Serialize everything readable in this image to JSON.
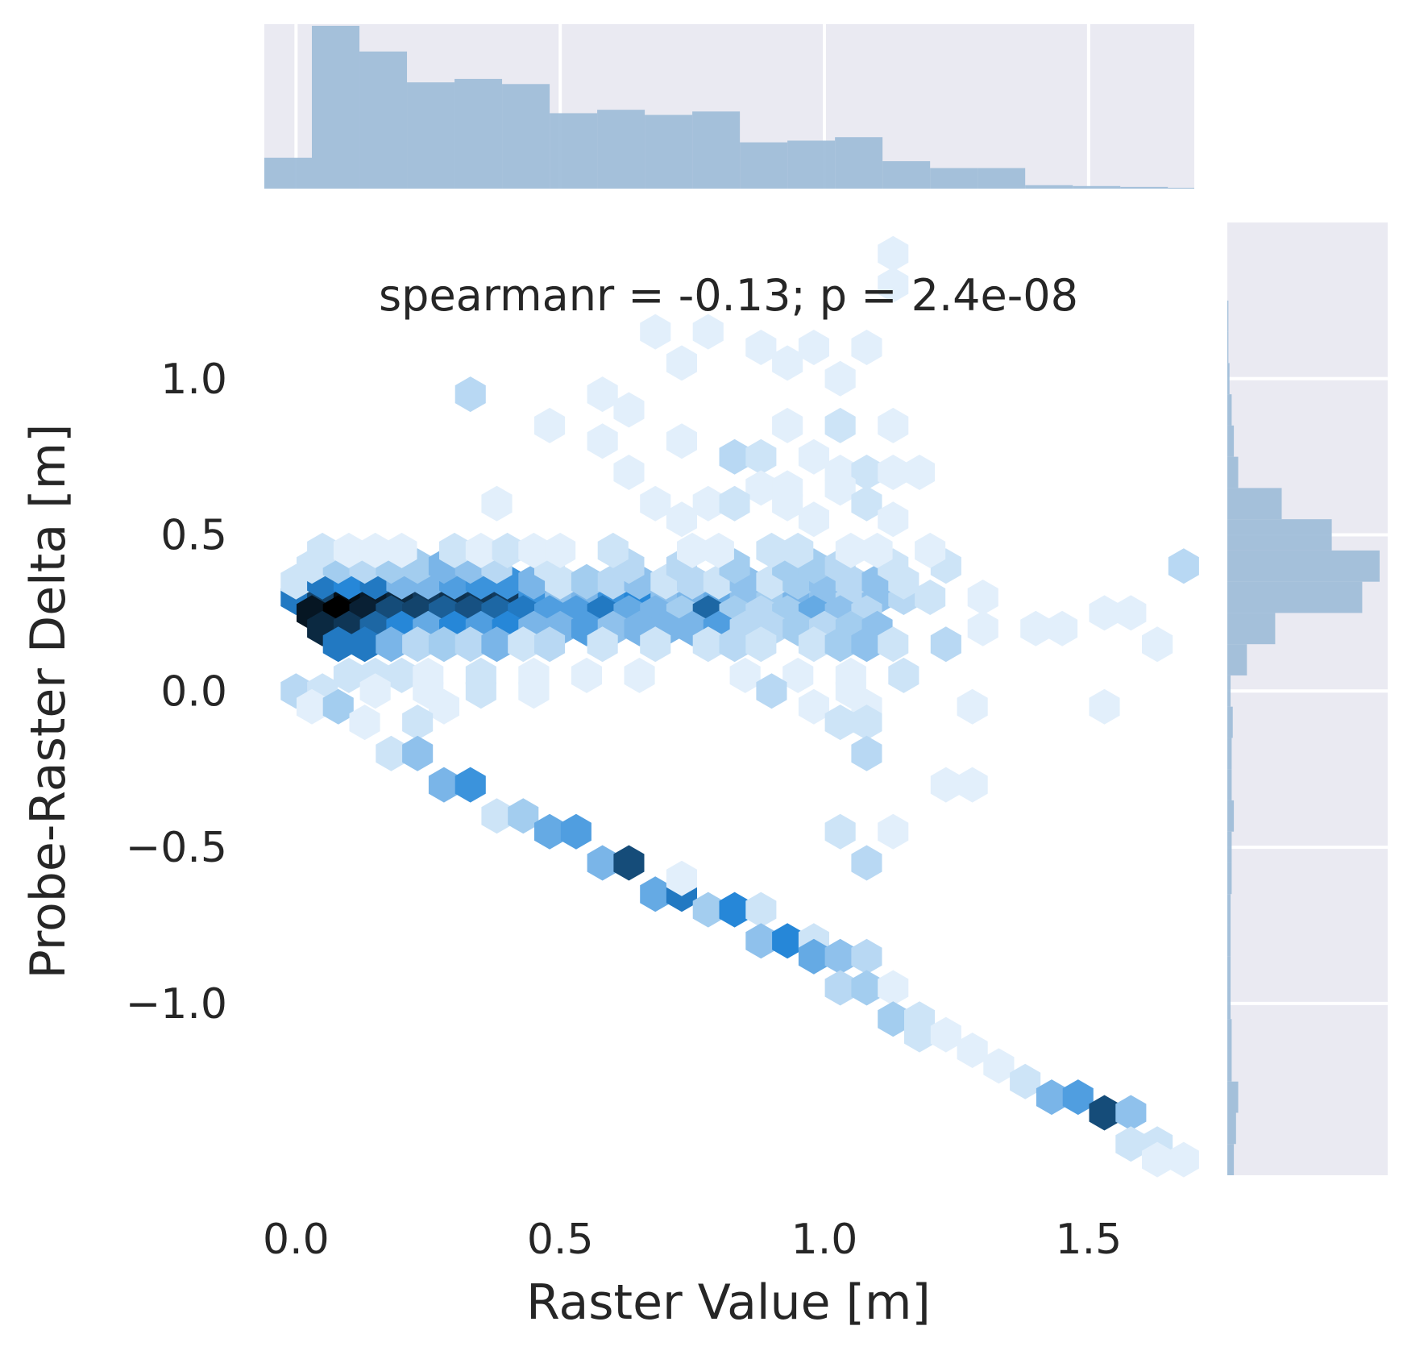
{
  "chart_data": {
    "type": "hexbin",
    "annotation": "spearmanr = -0.13; p = 2.4e-08",
    "xlabel": "Raster Value [m]",
    "ylabel": "Probe-Raster Delta [m]",
    "xlim": [
      -0.06,
      1.7
    ],
    "ylim": [
      -1.55,
      1.5
    ],
    "xticks": [
      0.0,
      0.5,
      1.0,
      1.5
    ],
    "xtick_labels": [
      "0.0",
      "0.5",
      "1.0",
      "1.5"
    ],
    "yticks": [
      -1.0,
      -0.5,
      0.0,
      0.5,
      1.0
    ],
    "ytick_labels": [
      "−1.0",
      "−0.5",
      "0.0",
      "0.5",
      "1.0"
    ],
    "colormap": [
      "#f7fbff",
      "#2687d8",
      "#000000"
    ],
    "marginal_color": "#9dbcd8",
    "marginal_background": "#eaeaf2",
    "hexbins": [
      [
        0.0,
        0.3,
        0.55
      ],
      [
        0.05,
        0.3,
        0.75
      ],
      [
        0.1,
        0.3,
        0.95
      ],
      [
        0.15,
        0.3,
        0.9
      ],
      [
        0.2,
        0.3,
        0.85
      ],
      [
        0.25,
        0.3,
        0.78
      ],
      [
        0.3,
        0.3,
        0.82
      ],
      [
        0.35,
        0.3,
        0.8
      ],
      [
        0.4,
        0.3,
        0.78
      ],
      [
        0.45,
        0.3,
        0.45
      ],
      [
        0.5,
        0.3,
        0.25
      ],
      [
        0.55,
        0.3,
        0.3
      ],
      [
        0.6,
        0.3,
        0.45
      ],
      [
        0.65,
        0.3,
        0.5
      ],
      [
        0.7,
        0.3,
        0.25
      ],
      [
        0.75,
        0.3,
        0.3
      ],
      [
        0.8,
        0.3,
        0.35
      ],
      [
        0.85,
        0.3,
        0.25
      ],
      [
        0.9,
        0.3,
        0.2
      ],
      [
        0.95,
        0.3,
        0.3
      ],
      [
        1.0,
        0.3,
        0.25
      ],
      [
        1.05,
        0.3,
        0.15
      ],
      [
        1.1,
        0.3,
        0.25
      ],
      [
        1.15,
        0.3,
        0.15
      ],
      [
        1.2,
        0.3,
        0.1
      ],
      [
        1.3,
        0.3,
        0.05
      ],
      [
        0.03,
        0.25,
        0.92
      ],
      [
        0.08,
        0.25,
        1.0
      ],
      [
        0.13,
        0.25,
        0.88
      ],
      [
        0.18,
        0.25,
        0.72
      ],
      [
        0.23,
        0.25,
        0.75
      ],
      [
        0.28,
        0.25,
        0.65
      ],
      [
        0.33,
        0.25,
        0.7
      ],
      [
        0.38,
        0.25,
        0.62
      ],
      [
        0.43,
        0.25,
        0.55
      ],
      [
        0.48,
        0.25,
        0.4
      ],
      [
        0.53,
        0.25,
        0.4
      ],
      [
        0.58,
        0.25,
        0.55
      ],
      [
        0.63,
        0.25,
        0.35
      ],
      [
        0.68,
        0.25,
        0.3
      ],
      [
        0.73,
        0.25,
        0.2
      ],
      [
        0.78,
        0.25,
        0.62
      ],
      [
        0.83,
        0.25,
        0.2
      ],
      [
        0.88,
        0.25,
        0.15
      ],
      [
        0.93,
        0.25,
        0.2
      ],
      [
        0.98,
        0.25,
        0.35
      ],
      [
        1.03,
        0.25,
        0.25
      ],
      [
        1.08,
        0.25,
        0.15
      ],
      [
        1.53,
        0.25,
        0.05
      ],
      [
        1.58,
        0.25,
        0.05
      ],
      [
        0.05,
        0.2,
        0.85
      ],
      [
        0.1,
        0.2,
        0.8
      ],
      [
        0.15,
        0.2,
        0.62
      ],
      [
        0.2,
        0.2,
        0.5
      ],
      [
        0.25,
        0.2,
        0.35
      ],
      [
        0.3,
        0.2,
        0.5
      ],
      [
        0.35,
        0.2,
        0.4
      ],
      [
        0.4,
        0.2,
        0.5
      ],
      [
        0.45,
        0.2,
        0.3
      ],
      [
        0.5,
        0.2,
        0.3
      ],
      [
        0.55,
        0.2,
        0.4
      ],
      [
        0.6,
        0.2,
        0.25
      ],
      [
        0.65,
        0.2,
        0.3
      ],
      [
        0.7,
        0.2,
        0.3
      ],
      [
        0.75,
        0.2,
        0.3
      ],
      [
        0.8,
        0.2,
        0.4
      ],
      [
        0.85,
        0.2,
        0.15
      ],
      [
        0.9,
        0.2,
        0.15
      ],
      [
        0.95,
        0.2,
        0.2
      ],
      [
        1.0,
        0.2,
        0.15
      ],
      [
        1.05,
        0.2,
        0.2
      ],
      [
        1.1,
        0.2,
        0.25
      ],
      [
        1.3,
        0.2,
        0.05
      ],
      [
        1.4,
        0.2,
        0.05
      ],
      [
        1.45,
        0.2,
        0.05
      ],
      [
        0.0,
        0.35,
        0.1
      ],
      [
        0.05,
        0.35,
        0.55
      ],
      [
        0.1,
        0.35,
        0.5
      ],
      [
        0.15,
        0.35,
        0.55
      ],
      [
        0.2,
        0.35,
        0.3
      ],
      [
        0.25,
        0.35,
        0.3
      ],
      [
        0.3,
        0.35,
        0.4
      ],
      [
        0.35,
        0.35,
        0.45
      ],
      [
        0.4,
        0.35,
        0.45
      ],
      [
        0.45,
        0.35,
        0.3
      ],
      [
        0.5,
        0.35,
        0.1
      ],
      [
        0.55,
        0.35,
        0.2
      ],
      [
        0.6,
        0.35,
        0.15
      ],
      [
        0.65,
        0.35,
        0.25
      ],
      [
        0.7,
        0.35,
        0.1
      ],
      [
        0.75,
        0.35,
        0.15
      ],
      [
        0.8,
        0.35,
        0.1
      ],
      [
        0.85,
        0.35,
        0.25
      ],
      [
        0.9,
        0.35,
        0.1
      ],
      [
        0.95,
        0.35,
        0.2
      ],
      [
        1.0,
        0.35,
        0.25
      ],
      [
        1.05,
        0.35,
        0.15
      ],
      [
        1.1,
        0.35,
        0.25
      ],
      [
        1.15,
        0.35,
        0.1
      ],
      [
        0.08,
        0.15,
        0.55
      ],
      [
        0.13,
        0.15,
        0.55
      ],
      [
        0.18,
        0.15,
        0.3
      ],
      [
        0.23,
        0.15,
        0.15
      ],
      [
        0.28,
        0.15,
        0.2
      ],
      [
        0.33,
        0.15,
        0.15
      ],
      [
        0.38,
        0.15,
        0.3
      ],
      [
        0.43,
        0.15,
        0.1
      ],
      [
        0.48,
        0.15,
        0.15
      ],
      [
        0.58,
        0.15,
        0.1
      ],
      [
        0.68,
        0.15,
        0.1
      ],
      [
        0.78,
        0.15,
        0.1
      ],
      [
        0.83,
        0.15,
        0.15
      ],
      [
        0.88,
        0.15,
        0.1
      ],
      [
        0.98,
        0.15,
        0.1
      ],
      [
        1.03,
        0.15,
        0.2
      ],
      [
        1.08,
        0.15,
        0.25
      ],
      [
        1.13,
        0.15,
        0.1
      ],
      [
        1.23,
        0.15,
        0.15
      ],
      [
        1.63,
        0.15,
        0.05
      ],
      [
        0.03,
        0.4,
        0.1
      ],
      [
        0.08,
        0.4,
        0.2
      ],
      [
        0.13,
        0.4,
        0.15
      ],
      [
        0.18,
        0.4,
        0.2
      ],
      [
        0.23,
        0.4,
        0.2
      ],
      [
        0.28,
        0.4,
        0.3
      ],
      [
        0.33,
        0.4,
        0.25
      ],
      [
        0.38,
        0.4,
        0.15
      ],
      [
        0.48,
        0.4,
        0.1
      ],
      [
        0.63,
        0.4,
        0.15
      ],
      [
        0.73,
        0.4,
        0.15
      ],
      [
        0.83,
        0.4,
        0.2
      ],
      [
        0.93,
        0.4,
        0.2
      ],
      [
        0.98,
        0.4,
        0.2
      ],
      [
        1.03,
        0.4,
        0.15
      ],
      [
        1.13,
        0.4,
        0.1
      ],
      [
        1.23,
        0.4,
        0.1
      ],
      [
        1.68,
        0.4,
        0.15
      ],
      [
        0.05,
        0.45,
        0.1
      ],
      [
        0.1,
        0.45,
        0.05
      ],
      [
        0.15,
        0.45,
        0.05
      ],
      [
        0.2,
        0.45,
        0.05
      ],
      [
        0.3,
        0.45,
        0.1
      ],
      [
        0.35,
        0.45,
        0.05
      ],
      [
        0.4,
        0.45,
        0.1
      ],
      [
        0.45,
        0.45,
        0.05
      ],
      [
        0.5,
        0.45,
        0.05
      ],
      [
        0.6,
        0.45,
        0.1
      ],
      [
        0.75,
        0.45,
        0.05
      ],
      [
        0.8,
        0.45,
        0.05
      ],
      [
        0.9,
        0.45,
        0.1
      ],
      [
        0.95,
        0.45,
        0.1
      ],
      [
        1.05,
        0.45,
        0.05
      ],
      [
        1.1,
        0.45,
        0.05
      ],
      [
        1.2,
        0.45,
        0.05
      ],
      [
        0.1,
        0.05,
        0.1
      ],
      [
        0.15,
        0.05,
        0.1
      ],
      [
        0.2,
        0.05,
        0.1
      ],
      [
        0.25,
        0.05,
        0.05
      ],
      [
        0.35,
        0.05,
        0.1
      ],
      [
        0.45,
        0.05,
        0.05
      ],
      [
        0.55,
        0.05,
        0.05
      ],
      [
        0.65,
        0.05,
        0.05
      ],
      [
        0.85,
        0.05,
        0.05
      ],
      [
        0.95,
        0.05,
        0.05
      ],
      [
        1.05,
        0.05,
        0.05
      ],
      [
        1.15,
        0.05,
        0.1
      ],
      [
        0.0,
        0.0,
        0.15
      ],
      [
        0.05,
        0.0,
        0.1
      ],
      [
        0.15,
        0.0,
        0.05
      ],
      [
        0.25,
        0.0,
        0.05
      ],
      [
        0.35,
        0.0,
        0.1
      ],
      [
        0.45,
        0.0,
        0.05
      ],
      [
        0.9,
        0.0,
        0.15
      ],
      [
        1.05,
        0.0,
        0.05
      ],
      [
        0.03,
        -0.05,
        0.05
      ],
      [
        0.08,
        -0.05,
        0.2
      ],
      [
        0.28,
        -0.05,
        0.05
      ],
      [
        0.98,
        -0.05,
        0.05
      ],
      [
        1.08,
        -0.05,
        0.05
      ],
      [
        1.28,
        -0.05,
        0.05
      ],
      [
        1.53,
        -0.05,
        0.05
      ],
      [
        0.13,
        -0.1,
        0.05
      ],
      [
        0.23,
        -0.1,
        0.1
      ],
      [
        1.03,
        -0.1,
        0.1
      ],
      [
        1.08,
        -0.1,
        0.1
      ],
      [
        0.18,
        -0.2,
        0.1
      ],
      [
        0.23,
        -0.2,
        0.25
      ],
      [
        1.08,
        -0.2,
        0.15
      ],
      [
        0.28,
        -0.3,
        0.3
      ],
      [
        0.33,
        -0.3,
        0.45
      ],
      [
        1.23,
        -0.3,
        0.05
      ],
      [
        1.28,
        -0.3,
        0.05
      ],
      [
        0.38,
        -0.4,
        0.1
      ],
      [
        0.43,
        -0.4,
        0.2
      ],
      [
        0.48,
        -0.45,
        0.35
      ],
      [
        0.53,
        -0.45,
        0.4
      ],
      [
        1.03,
        -0.45,
        0.1
      ],
      [
        1.13,
        -0.45,
        0.05
      ],
      [
        0.58,
        -0.55,
        0.3
      ],
      [
        0.63,
        -0.55,
        0.72
      ],
      [
        1.08,
        -0.55,
        0.15
      ],
      [
        0.68,
        -0.65,
        0.35
      ],
      [
        0.73,
        -0.65,
        0.55
      ],
      [
        0.73,
        -0.6,
        0.05
      ],
      [
        0.78,
        -0.7,
        0.2
      ],
      [
        0.83,
        -0.7,
        0.5
      ],
      [
        0.88,
        -0.7,
        0.1
      ],
      [
        0.88,
        -0.8,
        0.25
      ],
      [
        0.93,
        -0.8,
        0.5
      ],
      [
        0.98,
        -0.8,
        0.1
      ],
      [
        0.98,
        -0.85,
        0.35
      ],
      [
        1.03,
        -0.85,
        0.25
      ],
      [
        1.08,
        -0.85,
        0.15
      ],
      [
        1.03,
        -0.95,
        0.15
      ],
      [
        1.08,
        -0.95,
        0.2
      ],
      [
        1.13,
        -0.95,
        0.05
      ],
      [
        1.13,
        -1.05,
        0.2
      ],
      [
        1.18,
        -1.05,
        0.1
      ],
      [
        1.18,
        -1.1,
        0.1
      ],
      [
        1.23,
        -1.1,
        0.05
      ],
      [
        1.28,
        -1.15,
        0.05
      ],
      [
        1.33,
        -1.2,
        0.05
      ],
      [
        1.38,
        -1.25,
        0.1
      ],
      [
        1.43,
        -1.3,
        0.3
      ],
      [
        1.48,
        -1.3,
        0.4
      ],
      [
        1.53,
        -1.35,
        0.72
      ],
      [
        1.58,
        -1.35,
        0.25
      ],
      [
        1.58,
        -1.45,
        0.1
      ],
      [
        1.63,
        -1.45,
        0.1
      ],
      [
        1.63,
        -1.5,
        0.05
      ],
      [
        1.68,
        -1.5,
        0.05
      ],
      [
        0.33,
        0.95,
        0.15
      ],
      [
        0.58,
        0.95,
        0.05
      ],
      [
        0.63,
        0.9,
        0.05
      ],
      [
        0.48,
        0.85,
        0.05
      ],
      [
        0.58,
        0.8,
        0.05
      ],
      [
        0.73,
        0.8,
        0.05
      ],
      [
        0.83,
        0.75,
        0.15
      ],
      [
        0.88,
        0.75,
        0.1
      ],
      [
        0.98,
        0.75,
        0.05
      ],
      [
        1.03,
        0.7,
        0.05
      ],
      [
        1.08,
        0.7,
        0.1
      ],
      [
        1.13,
        0.7,
        0.05
      ],
      [
        1.18,
        0.7,
        0.05
      ],
      [
        0.63,
        0.7,
        0.05
      ],
      [
        0.88,
        0.65,
        0.05
      ],
      [
        0.93,
        0.65,
        0.05
      ],
      [
        1.03,
        0.65,
        0.05
      ],
      [
        1.08,
        0.6,
        0.1
      ],
      [
        0.38,
        0.6,
        0.05
      ],
      [
        0.68,
        0.6,
        0.05
      ],
      [
        0.78,
        0.6,
        0.05
      ],
      [
        0.83,
        0.6,
        0.1
      ],
      [
        0.93,
        0.6,
        0.05
      ],
      [
        0.73,
        0.55,
        0.05
      ],
      [
        0.98,
        0.55,
        0.05
      ],
      [
        1.13,
        0.55,
        0.05
      ],
      [
        0.68,
        1.15,
        0.05
      ],
      [
        0.78,
        1.15,
        0.05
      ],
      [
        0.88,
        1.1,
        0.05
      ],
      [
        0.98,
        1.1,
        0.05
      ],
      [
        1.08,
        1.1,
        0.05
      ],
      [
        0.73,
        1.05,
        0.05
      ],
      [
        0.93,
        1.05,
        0.05
      ],
      [
        1.03,
        1.0,
        0.05
      ],
      [
        1.13,
        1.4,
        0.05
      ],
      [
        1.13,
        1.3,
        0.05
      ],
      [
        1.03,
        0.85,
        0.1
      ],
      [
        0.93,
        0.85,
        0.05
      ],
      [
        1.13,
        0.85,
        0.05
      ]
    ],
    "x_marginal": {
      "bin_edges": [
        -0.06,
        0.03,
        0.12,
        0.21,
        0.3,
        0.39,
        0.48,
        0.57,
        0.66,
        0.75,
        0.84,
        0.93,
        1.02,
        1.11,
        1.2,
        1.29,
        1.38,
        1.47,
        1.56,
        1.65,
        1.7
      ],
      "counts": [
        18,
        95,
        80,
        62,
        64,
        61,
        44,
        46,
        43,
        45,
        27,
        28,
        30,
        16,
        12,
        12,
        2,
        1.5,
        1,
        0.5
      ]
    },
    "y_marginal": {
      "bin_edges": [
        -1.55,
        -1.45,
        -1.35,
        -1.25,
        -1.15,
        -1.05,
        -0.95,
        -0.85,
        -0.75,
        -0.65,
        -0.55,
        -0.45,
        -0.35,
        -0.25,
        -0.15,
        -0.05,
        0.05,
        0.15,
        0.25,
        0.35,
        0.45,
        0.55,
        0.65,
        0.75,
        0.85,
        0.95,
        1.05,
        1.15,
        1.25
      ],
      "counts": [
        3,
        4,
        5,
        2,
        2,
        1.5,
        1.5,
        1.5,
        1.5,
        2,
        2,
        3,
        2,
        2,
        2.5,
        1.5,
        9,
        22,
        62,
        70,
        48,
        25,
        5,
        3,
        2,
        1,
        0.5,
        0.5
      ]
    }
  }
}
